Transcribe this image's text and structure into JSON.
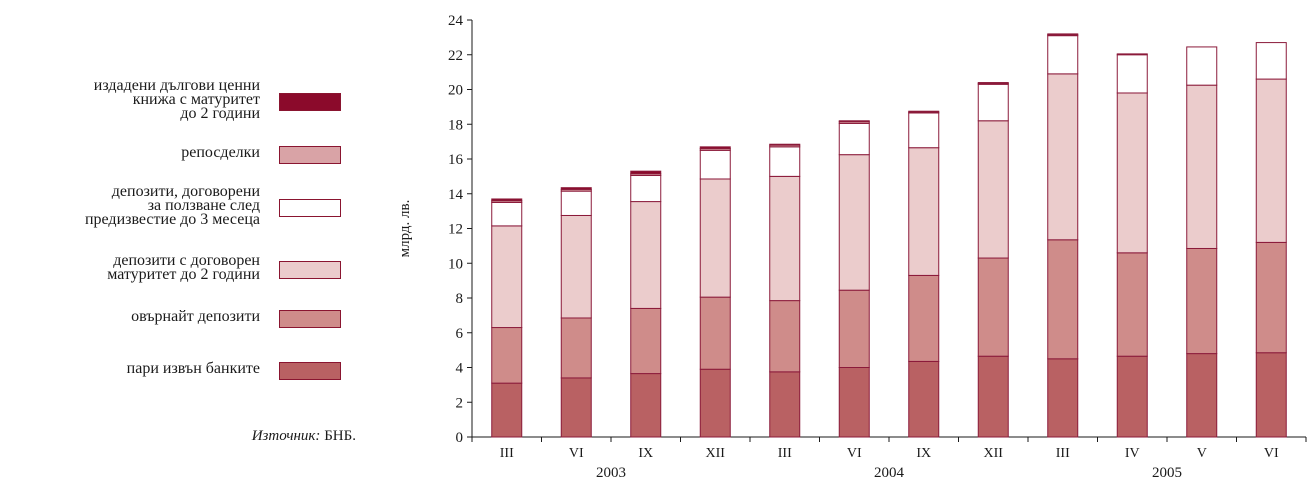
{
  "legend": [
    {
      "label": "издадени дългови ценни\nкнижа с матуритет\nдо 2 години",
      "color": "#8b0a2b"
    },
    {
      "label": "репосделки",
      "color": "#d9a3a6"
    },
    {
      "label": "депозити, договорени\nза ползване след\nпредизвестие до 3 месеца",
      "color": "#ffffff"
    },
    {
      "label": "депозити с договорен\nматуритет до 2 години",
      "color": "#ebcccc"
    },
    {
      "label": "овърнайт депозити",
      "color": "#cf8c8a"
    },
    {
      "label": "пари извън банките",
      "color": "#b96163"
    }
  ],
  "source": {
    "prefix": "Източник:",
    "text": " БНБ."
  },
  "chart_data": {
    "type": "bar",
    "stacked": true,
    "ylabel": "млрд. лв.",
    "ylim": [
      0,
      24
    ],
    "yticks": [
      0,
      2,
      4,
      6,
      8,
      10,
      12,
      14,
      16,
      18,
      20,
      22,
      24
    ],
    "categories": [
      "III",
      "VI",
      "IX",
      "XII",
      "III",
      "VI",
      "IX",
      "XII",
      "III",
      "IV",
      "V",
      "VI"
    ],
    "year_groups": [
      {
        "label": "2003",
        "start": 0,
        "end": 3
      },
      {
        "label": "2004",
        "start": 4,
        "end": 7
      },
      {
        "label": "2005",
        "start": 8,
        "end": 11
      }
    ],
    "series": [
      {
        "name": "пари извън банките",
        "color": "#b96163",
        "values": [
          3.1,
          3.4,
          3.65,
          3.9,
          3.75,
          4.0,
          4.35,
          4.65,
          4.5,
          4.65,
          4.8,
          4.85
        ]
      },
      {
        "name": "овърнайт депозити",
        "color": "#cf8c8a",
        "values": [
          3.2,
          3.45,
          3.75,
          4.15,
          4.1,
          4.45,
          4.95,
          5.65,
          6.85,
          5.95,
          6.05,
          6.35
        ]
      },
      {
        "name": "депозити с договорен матуритет до 2 години",
        "color": "#ebcccc",
        "values": [
          5.85,
          5.9,
          6.15,
          6.8,
          7.15,
          7.8,
          7.35,
          7.9,
          9.55,
          9.2,
          9.4,
          9.4
        ]
      },
      {
        "name": "депозити, договорени за ползване след предизвестие до 3 месеца",
        "color": "#ffffff",
        "values": [
          1.35,
          1.4,
          1.5,
          1.65,
          1.7,
          1.8,
          2.0,
          2.1,
          2.2,
          2.2,
          2.2,
          2.1
        ]
      },
      {
        "name": "репосделки",
        "color": "#d9a3a6",
        "values": [
          0.1,
          0.1,
          0.1,
          0.1,
          0.1,
          0.1,
          0.05,
          0.05,
          0.05,
          0.0,
          0.0,
          0.0
        ]
      },
      {
        "name": "издадени дългови ценни книжа с матуритет до 2 години",
        "color": "#8b0a2b",
        "values": [
          0.1,
          0.1,
          0.15,
          0.1,
          0.05,
          0.05,
          0.05,
          0.05,
          0.05,
          0.05,
          0.0,
          0.0
        ]
      }
    ]
  }
}
